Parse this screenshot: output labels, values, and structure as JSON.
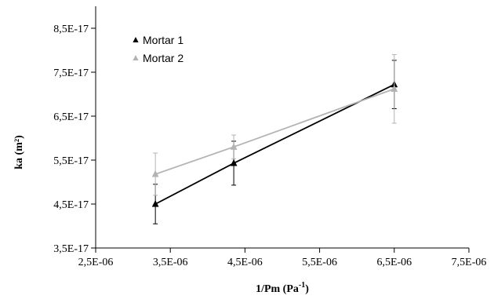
{
  "chart_data": {
    "type": "scatter",
    "title": "",
    "xlabel": "1/Pm (Pa",
    "xlabel_superscript": "-1",
    "xlabel_suffix": ")",
    "ylabel": "ka (m²)",
    "xlim": [
      2.5e-06,
      7.5e-06
    ],
    "ylim": [
      3.5e-17,
      9e-17
    ],
    "x_ticks": [
      2.5e-06,
      3.5e-06,
      4.5e-06,
      5.5e-06,
      6.5e-06,
      7.5e-06
    ],
    "x_tick_labels": [
      "2,5E-06",
      "3,5E-06",
      "4,5E-06",
      "5,5E-06",
      "6,5E-06",
      "7,5E-06"
    ],
    "y_ticks": [
      3.5e-17,
      4.5e-17,
      5.5e-17,
      6.5e-17,
      7.5e-17,
      8.5e-17
    ],
    "y_tick_labels": [
      "3,5E-17",
      "4,5E-17",
      "5,5E-17",
      "6,5E-17",
      "7,5E-17",
      "8,5E-17"
    ],
    "grid": false,
    "legend_position": "top-left",
    "series": [
      {
        "name": "Mortar 1",
        "color": "#000000",
        "marker": "triangle",
        "x": [
          3.3e-06,
          4.35e-06,
          6.5e-06
        ],
        "y": [
          4.5e-17,
          5.43e-17,
          7.22e-17
        ],
        "err": [
          4.5e-18,
          5e-18,
          5.5e-18
        ]
      },
      {
        "name": "Mortar 2",
        "color": "#b3b3b3",
        "marker": "triangle",
        "x": [
          3.3e-06,
          4.35e-06,
          6.5e-06
        ],
        "y": [
          5.18e-17,
          5.8e-17,
          7.12e-17
        ],
        "err": [
          4.8e-18,
          2.7e-18,
          7.8e-18
        ]
      }
    ]
  }
}
